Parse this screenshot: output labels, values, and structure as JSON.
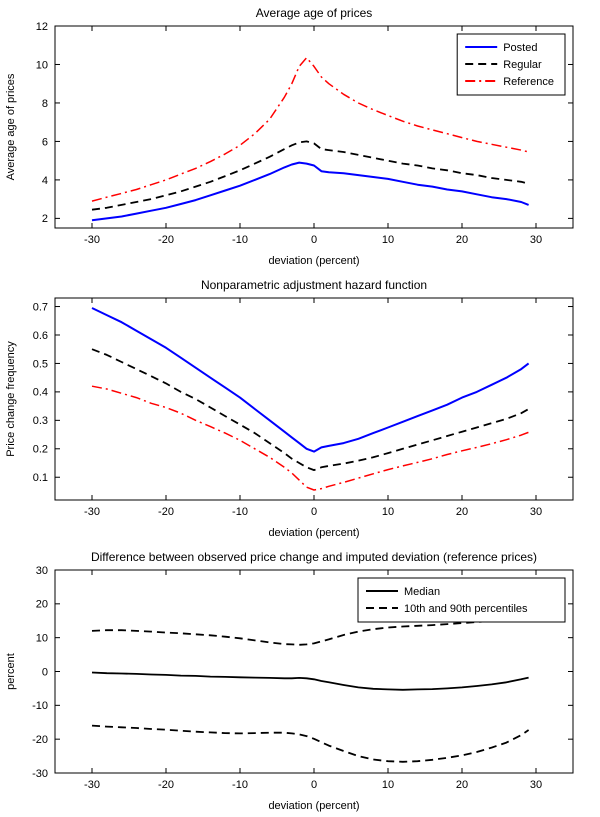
{
  "figure": {
    "background": "#ffffff",
    "text_color": "#000000"
  },
  "chart_data": [
    {
      "type": "line",
      "title": "Average age of prices",
      "xlabel": "deviation (percent)",
      "ylabel": "Average age of prices",
      "xlim": [
        -35,
        35
      ],
      "ylim": [
        1.5,
        12
      ],
      "xticks": [
        -30,
        -20,
        -10,
        0,
        10,
        20,
        30
      ],
      "yticks": [
        2,
        4,
        6,
        8,
        10,
        12
      ],
      "grid": false,
      "x": [
        -30,
        -28,
        -26,
        -24,
        -22,
        -20,
        -18,
        -16,
        -14,
        -12,
        -10,
        -8,
        -6,
        -4,
        -3,
        -2,
        -1,
        0,
        1,
        2,
        4,
        6,
        8,
        10,
        12,
        14,
        16,
        18,
        20,
        22,
        24,
        26,
        28,
        29
      ],
      "series": [
        {
          "name": "Posted",
          "color": "#0000ff",
          "style": "solid",
          "width": 2,
          "values": [
            1.9,
            2.0,
            2.1,
            2.25,
            2.4,
            2.55,
            2.75,
            2.95,
            3.2,
            3.45,
            3.7,
            4.0,
            4.3,
            4.65,
            4.8,
            4.9,
            4.85,
            4.75,
            4.45,
            4.4,
            4.35,
            4.25,
            4.15,
            4.05,
            3.9,
            3.75,
            3.65,
            3.5,
            3.4,
            3.25,
            3.1,
            3.0,
            2.85,
            2.7
          ]
        },
        {
          "name": "Regular",
          "color": "#000000",
          "style": "dashed",
          "width": 1.8,
          "values": [
            2.45,
            2.55,
            2.7,
            2.85,
            3.0,
            3.2,
            3.4,
            3.65,
            3.9,
            4.2,
            4.5,
            4.85,
            5.2,
            5.6,
            5.8,
            5.95,
            6.0,
            5.9,
            5.6,
            5.55,
            5.45,
            5.3,
            5.15,
            5.0,
            4.85,
            4.75,
            4.6,
            4.5,
            4.35,
            4.25,
            4.1,
            4.0,
            3.9,
            3.8
          ]
        },
        {
          "name": "Reference",
          "color": "#ff0000",
          "style": "dashdot",
          "width": 1.5,
          "values": [
            2.9,
            3.1,
            3.3,
            3.5,
            3.75,
            4.0,
            4.3,
            4.6,
            4.95,
            5.35,
            5.8,
            6.4,
            7.15,
            8.3,
            9.0,
            9.9,
            10.35,
            9.9,
            9.35,
            9.0,
            8.45,
            8.0,
            7.65,
            7.35,
            7.05,
            6.8,
            6.6,
            6.4,
            6.2,
            6.0,
            5.85,
            5.7,
            5.55,
            5.45
          ]
        }
      ],
      "legend": {
        "position": "top-right",
        "entries": [
          {
            "label": "Posted",
            "color": "#0000ff",
            "style": "solid"
          },
          {
            "label": "Regular",
            "color": "#000000",
            "style": "dashed"
          },
          {
            "label": "Reference",
            "color": "#ff0000",
            "style": "dashdot"
          }
        ]
      }
    },
    {
      "type": "line",
      "title": "Nonparametric adjustment hazard function",
      "xlabel": "deviation (percent)",
      "ylabel": "Price change frequency",
      "xlim": [
        -35,
        35
      ],
      "ylim": [
        0.02,
        0.73
      ],
      "xticks": [
        -30,
        -20,
        -10,
        0,
        10,
        20,
        30
      ],
      "yticks": [
        0.1,
        0.2,
        0.3,
        0.4,
        0.5,
        0.6,
        0.7
      ],
      "grid": false,
      "x": [
        -30,
        -28,
        -26,
        -24,
        -22,
        -20,
        -18,
        -16,
        -14,
        -12,
        -10,
        -8,
        -6,
        -4,
        -3,
        -2,
        -1,
        0,
        1,
        2,
        4,
        6,
        8,
        10,
        12,
        14,
        16,
        18,
        20,
        22,
        24,
        26,
        28,
        29
      ],
      "series": [
        {
          "name": "Posted",
          "color": "#0000ff",
          "style": "solid",
          "width": 2,
          "values": [
            0.695,
            0.67,
            0.645,
            0.615,
            0.585,
            0.555,
            0.52,
            0.485,
            0.45,
            0.415,
            0.38,
            0.34,
            0.3,
            0.26,
            0.24,
            0.22,
            0.2,
            0.19,
            0.205,
            0.21,
            0.22,
            0.235,
            0.255,
            0.275,
            0.295,
            0.315,
            0.335,
            0.355,
            0.38,
            0.4,
            0.425,
            0.45,
            0.48,
            0.5
          ]
        },
        {
          "name": "Regular",
          "color": "#000000",
          "style": "dashed",
          "width": 1.8,
          "values": [
            0.55,
            0.53,
            0.505,
            0.48,
            0.455,
            0.43,
            0.4,
            0.375,
            0.345,
            0.315,
            0.285,
            0.255,
            0.22,
            0.185,
            0.165,
            0.15,
            0.135,
            0.125,
            0.135,
            0.14,
            0.148,
            0.158,
            0.17,
            0.185,
            0.2,
            0.215,
            0.23,
            0.245,
            0.26,
            0.275,
            0.29,
            0.305,
            0.325,
            0.34
          ]
        },
        {
          "name": "Reference",
          "color": "#ff0000",
          "style": "dashdot",
          "width": 1.5,
          "values": [
            0.42,
            0.41,
            0.395,
            0.38,
            0.36,
            0.345,
            0.325,
            0.3,
            0.278,
            0.255,
            0.23,
            0.2,
            0.17,
            0.135,
            0.115,
            0.09,
            0.065,
            0.055,
            0.06,
            0.068,
            0.082,
            0.097,
            0.112,
            0.127,
            0.14,
            0.152,
            0.165,
            0.18,
            0.193,
            0.205,
            0.218,
            0.232,
            0.248,
            0.258
          ]
        }
      ],
      "legend": null
    },
    {
      "type": "line",
      "title": "Difference between observed price change and imputed deviation (reference prices)",
      "xlabel": "deviation (percent)",
      "ylabel": "percent",
      "xlim": [
        -35,
        35
      ],
      "ylim": [
        -30,
        30
      ],
      "xticks": [
        -30,
        -20,
        -10,
        0,
        10,
        20,
        30
      ],
      "yticks": [
        -30,
        -20,
        -10,
        0,
        10,
        20,
        30
      ],
      "grid": false,
      "x": [
        -30,
        -28,
        -26,
        -24,
        -22,
        -20,
        -18,
        -16,
        -14,
        -12,
        -10,
        -8,
        -6,
        -4,
        -3,
        -2,
        -1,
        0,
        1,
        2,
        4,
        6,
        8,
        10,
        12,
        14,
        16,
        18,
        20,
        22,
        24,
        26,
        28,
        29
      ],
      "series": [
        {
          "name": "Median",
          "color": "#000000",
          "style": "solid",
          "width": 1.8,
          "values": [
            -0.3,
            -0.5,
            -0.6,
            -0.7,
            -0.9,
            -1.0,
            -1.2,
            -1.3,
            -1.5,
            -1.6,
            -1.7,
            -1.8,
            -1.9,
            -2.0,
            -2.0,
            -1.9,
            -2.0,
            -2.3,
            -2.8,
            -3.2,
            -4.0,
            -4.7,
            -5.1,
            -5.3,
            -5.4,
            -5.3,
            -5.2,
            -5.0,
            -4.7,
            -4.3,
            -3.8,
            -3.2,
            -2.3,
            -1.8
          ]
        },
        {
          "name": "90th percentile",
          "color": "#000000",
          "style": "dashed",
          "width": 1.8,
          "values": [
            12.0,
            12.2,
            12.2,
            12.0,
            11.8,
            11.5,
            11.3,
            11.0,
            10.7,
            10.3,
            9.8,
            9.2,
            8.6,
            8.1,
            8.0,
            7.9,
            8.0,
            8.3,
            8.9,
            9.5,
            10.8,
            11.8,
            12.5,
            13.0,
            13.3,
            13.5,
            13.7,
            14.0,
            14.3,
            14.6,
            15.0,
            15.4,
            16.0,
            16.3
          ]
        },
        {
          "name": "10th percentile",
          "color": "#000000",
          "style": "dashed",
          "width": 1.8,
          "values": [
            -16.0,
            -16.3,
            -16.5,
            -16.7,
            -17.0,
            -17.2,
            -17.5,
            -17.8,
            -18.0,
            -18.2,
            -18.3,
            -18.2,
            -18.1,
            -18.1,
            -18.3,
            -18.6,
            -19.1,
            -19.9,
            -20.9,
            -21.9,
            -23.5,
            -25.0,
            -26.0,
            -26.5,
            -26.7,
            -26.5,
            -26.1,
            -25.5,
            -24.8,
            -23.8,
            -22.5,
            -21.0,
            -18.8,
            -17.3
          ]
        }
      ],
      "legend": {
        "position": "top-right",
        "entries": [
          {
            "label": "Median",
            "color": "#000000",
            "style": "solid"
          },
          {
            "label": "10th and 90th percentiles",
            "color": "#000000",
            "style": "dashed"
          }
        ]
      }
    }
  ]
}
